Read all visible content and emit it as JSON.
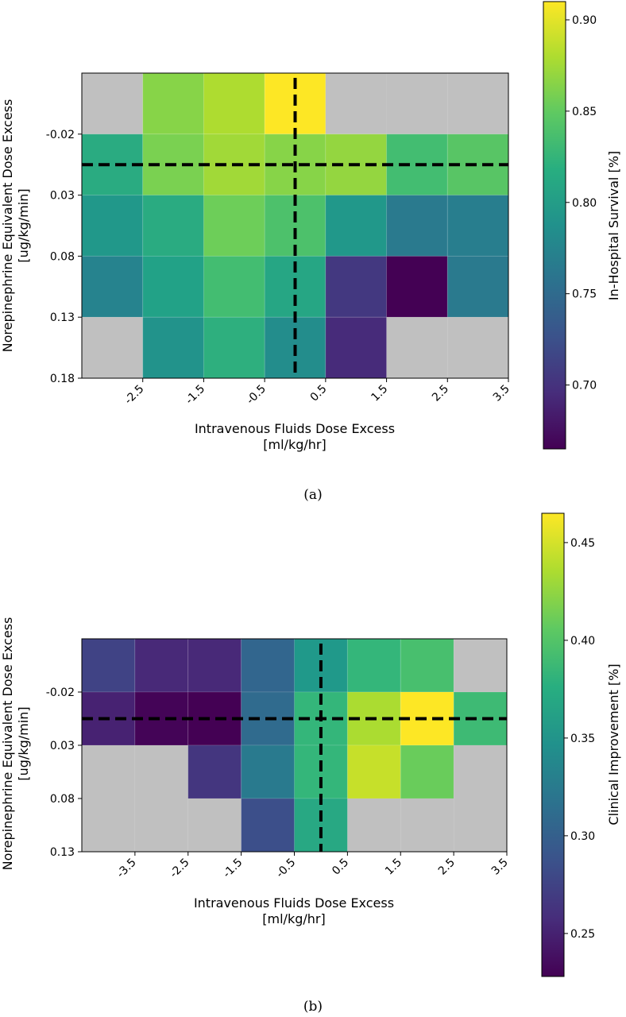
{
  "colors": {
    "na": "#c0c0c0",
    "guide": "#000000"
  },
  "chart_data": [
    {
      "type": "heatmap",
      "caption": "(a)",
      "xlabel_line1": "Intravenous Fluids Dose Excess",
      "xlabel_line2": "[ml/kg/hr]",
      "ylabel_line1": "Norepinephrine Equivalent Dose Excess",
      "ylabel_line2": "[ug/kg/min]",
      "x_edges": [
        -3.5,
        -2.5,
        -1.5,
        -0.5,
        0.5,
        1.5,
        2.5,
        3.5
      ],
      "x_tick_labels": [
        "-2.5",
        "-1.5",
        "-0.5",
        "0.5",
        "1.5",
        "2.5",
        "3.5"
      ],
      "y_edges": [
        -0.07,
        -0.02,
        0.03,
        0.08,
        0.13,
        0.18
      ],
      "y_tick_labels": [
        "-0.02",
        "0.03",
        "0.08",
        "0.13",
        "0.18"
      ],
      "values": [
        [
          null,
          0.865,
          0.88,
          0.91,
          null,
          null,
          null
        ],
        [
          0.815,
          0.86,
          0.875,
          0.865,
          0.87,
          0.835,
          0.845
        ],
        [
          0.795,
          0.815,
          0.855,
          0.84,
          0.795,
          0.765,
          0.77
        ],
        [
          0.775,
          0.805,
          0.835,
          0.81,
          0.705,
          0.665,
          0.765
        ],
        [
          null,
          0.79,
          0.82,
          0.785,
          0.695,
          null,
          null
        ]
      ],
      "vline_x": 0.0,
      "hline_y": 0.005,
      "colorbar": {
        "label": "In-Hospital Survival [%]",
        "range": [
          0.665,
          0.91
        ],
        "ticks": [
          "0.70",
          "0.75",
          "0.80",
          "0.85",
          "0.90"
        ]
      }
    },
    {
      "type": "heatmap",
      "caption": "(b)",
      "xlabel_line1": "Intravenous Fluids Dose Excess",
      "xlabel_line2": "[ml/kg/hr]",
      "ylabel_line1": "Norepinephrine Equivalent Dose Excess",
      "ylabel_line2": "[ug/kg/min]",
      "x_edges": [
        -4.5,
        -3.5,
        -2.5,
        -1.5,
        -0.5,
        0.5,
        1.5,
        2.5,
        3.5
      ],
      "x_tick_labels": [
        "-3.5",
        "-2.5",
        "-1.5",
        "-0.5",
        "0.5",
        "1.5",
        "2.5",
        "3.5"
      ],
      "y_edges": [
        -0.07,
        -0.02,
        0.03,
        0.08,
        0.13
      ],
      "y_tick_labels": [
        "-0.02",
        "0.03",
        "0.08",
        "0.13"
      ],
      "values": [
        [
          0.275,
          0.255,
          0.255,
          0.305,
          0.355,
          0.385,
          0.395,
          null
        ],
        [
          0.25,
          0.23,
          0.228,
          0.31,
          0.385,
          0.435,
          0.465,
          0.39
        ],
        [
          null,
          null,
          0.265,
          0.325,
          0.385,
          0.445,
          0.41,
          null
        ],
        [
          null,
          null,
          null,
          0.285,
          0.37,
          null,
          null,
          null
        ]
      ],
      "vline_x": 0.0,
      "hline_y": 0.005,
      "colorbar": {
        "label": "Clinical Improvement [%]",
        "range": [
          0.228,
          0.465
        ],
        "ticks": [
          "0.25",
          "0.30",
          "0.35",
          "0.40",
          "0.45"
        ]
      }
    }
  ]
}
